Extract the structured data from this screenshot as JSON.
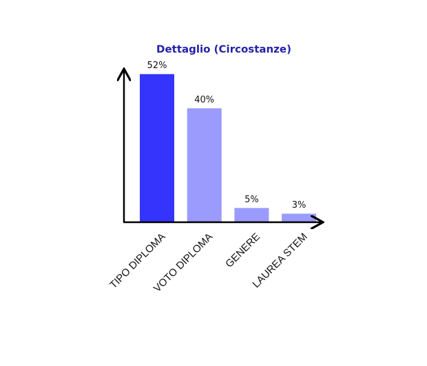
{
  "chart_data": {
    "type": "bar",
    "title": "Dettaglio (Circostanze)",
    "categories": [
      "TIPO DIPLOMA",
      "VOTO DIPLOMA",
      "GENERE",
      "LAUREA STEM"
    ],
    "values": [
      52,
      40,
      5,
      3
    ],
    "value_labels": [
      "52%",
      "40%",
      "5%",
      "3%"
    ],
    "colors": [
      "#3434fc",
      "#9b9bfd",
      "#9b9bfd",
      "#9b9bfd"
    ]
  }
}
